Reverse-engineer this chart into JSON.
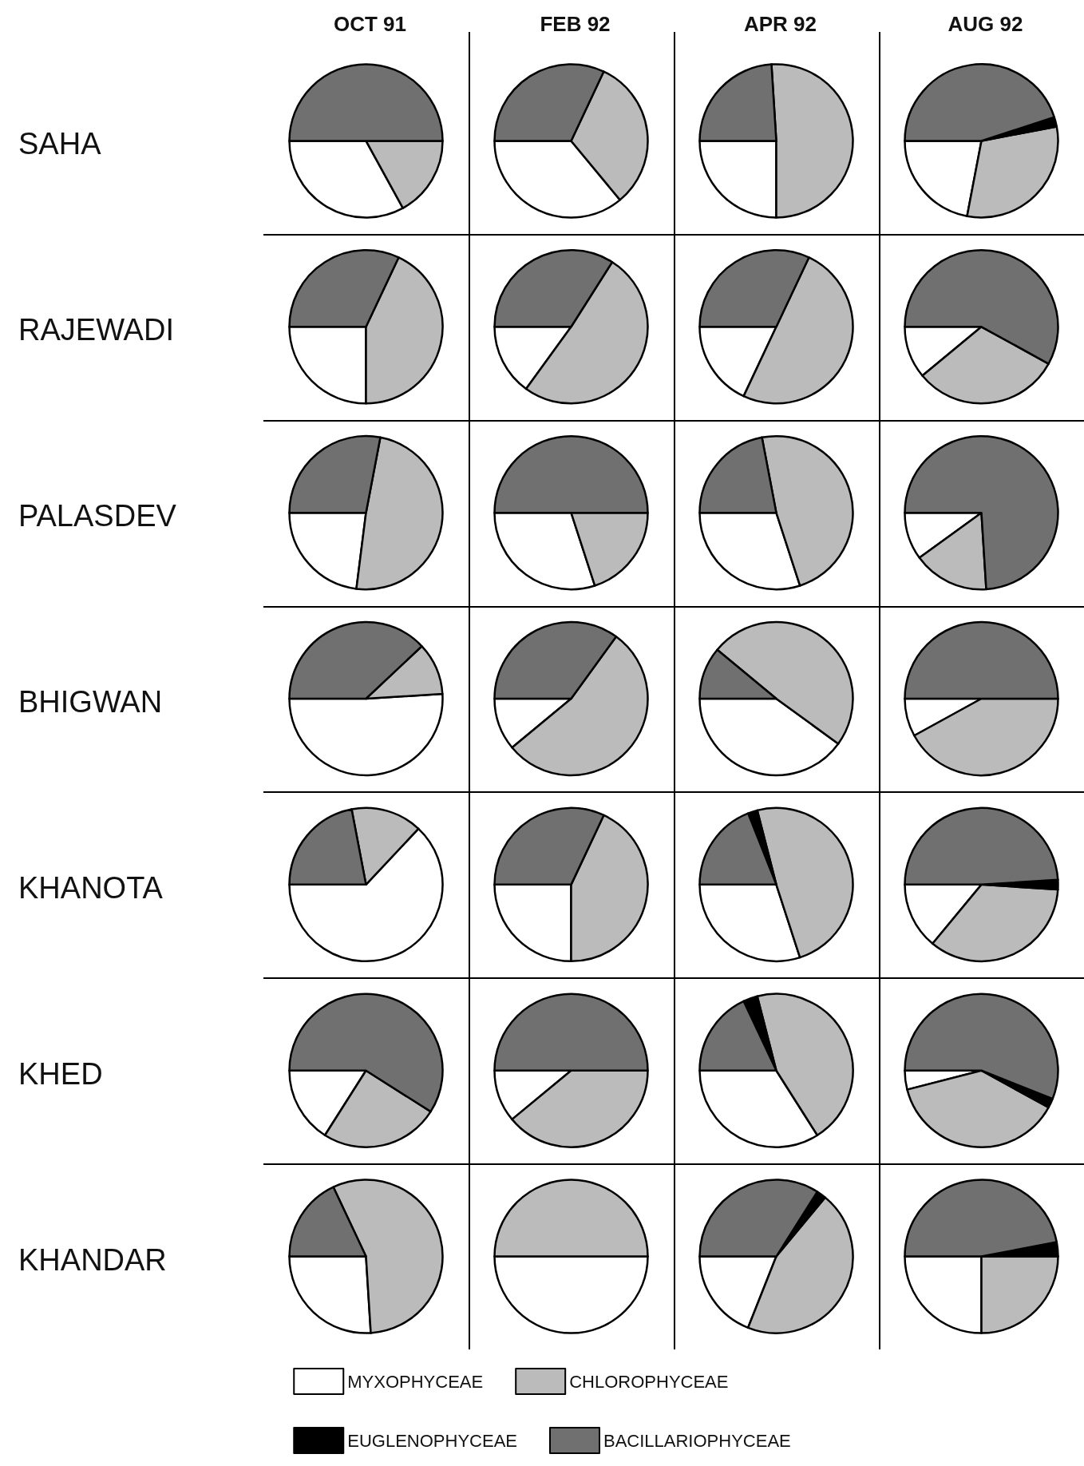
{
  "chart_data": [
    {
      "type": "pie",
      "title": "OCT 91",
      "ylabel": "SAHA",
      "categories": [
        "MYXOPHYCEAE",
        "CHLOROPHYCEAE",
        "EUGLENOPHYCEAE",
        "BACILLARIOPHYCEAE"
      ],
      "values": [
        33,
        17,
        0,
        50
      ],
      "colors": [
        "#ffffff",
        "#bbbbbb",
        "#000000",
        "#707070"
      ],
      "legend": "bottom"
    },
    {
      "type": "pie",
      "title": "FEB 92",
      "categories": [
        null,
        null,
        null,
        null
      ],
      "values": [
        36,
        32,
        0,
        32
      ],
      "colors": [
        "#ffffff",
        "#bbbbbb",
        "#000000",
        "#707070"
      ]
    },
    {
      "type": "pie",
      "title": "APR 92",
      "categories": [
        null,
        null,
        null,
        null
      ],
      "values": [
        25,
        51,
        0,
        24
      ],
      "colors": [
        "#ffffff",
        "#bbbbbb",
        "#000000",
        "#707070"
      ]
    },
    {
      "type": "pie",
      "title": "AUG 92",
      "categories": [
        null,
        null,
        null,
        null
      ],
      "values": [
        22,
        31,
        2,
        45
      ],
      "colors": [
        "#ffffff",
        "#bbbbbb",
        "#000000",
        "#707070"
      ]
    },
    {
      "type": "pie",
      "ylabel": "RAJEWADI",
      "categories": [
        null,
        null,
        null,
        null
      ],
      "values": [
        25,
        43,
        0,
        32
      ],
      "colors": [
        "#ffffff",
        "#bbbbbb",
        "#000000",
        "#707070"
      ]
    },
    {
      "type": "pie",
      "categories": [
        null,
        null,
        null,
        null
      ],
      "values": [
        15,
        51,
        0,
        34
      ],
      "colors": [
        "#ffffff",
        "#bbbbbb",
        "#000000",
        "#707070"
      ]
    },
    {
      "type": "pie",
      "categories": [
        null,
        null,
        null,
        null
      ],
      "values": [
        18,
        50,
        0,
        32
      ],
      "colors": [
        "#ffffff",
        "#bbbbbb",
        "#000000",
        "#707070"
      ]
    },
    {
      "type": "pie",
      "categories": [
        null,
        null,
        null,
        null
      ],
      "values": [
        11,
        31,
        0,
        58
      ],
      "colors": [
        "#ffffff",
        "#bbbbbb",
        "#000000",
        "#707070"
      ]
    },
    {
      "type": "pie",
      "ylabel": "PALASDEV",
      "categories": [
        null,
        null,
        null,
        null
      ],
      "values": [
        23,
        49,
        0,
        28
      ],
      "colors": [
        "#ffffff",
        "#bbbbbb",
        "#000000",
        "#707070"
      ]
    },
    {
      "type": "pie",
      "categories": [
        null,
        null,
        null,
        null
      ],
      "values": [
        30,
        20,
        0,
        50
      ],
      "colors": [
        "#ffffff",
        "#bbbbbb",
        "#000000",
        "#707070"
      ]
    },
    {
      "type": "pie",
      "categories": [
        null,
        null,
        null,
        null
      ],
      "values": [
        30,
        48,
        0,
        22
      ],
      "colors": [
        "#ffffff",
        "#bbbbbb",
        "#000000",
        "#707070"
      ]
    },
    {
      "type": "pie",
      "categories": [
        null,
        null,
        null,
        null
      ],
      "values": [
        10,
        16,
        0,
        74
      ],
      "colors": [
        "#ffffff",
        "#bbbbbb",
        "#000000",
        "#707070"
      ]
    },
    {
      "type": "pie",
      "ylabel": "BHIGWAN",
      "categories": [
        null,
        null,
        null,
        null
      ],
      "values": [
        51,
        11,
        0,
        38
      ],
      "colors": [
        "#ffffff",
        "#bbbbbb",
        "#000000",
        "#707070"
      ]
    },
    {
      "type": "pie",
      "categories": [
        null,
        null,
        null,
        null
      ],
      "values": [
        11,
        54,
        0,
        35
      ],
      "colors": [
        "#ffffff",
        "#bbbbbb",
        "#000000",
        "#707070"
      ]
    },
    {
      "type": "pie",
      "categories": [
        null,
        null,
        null,
        null
      ],
      "values": [
        40,
        49,
        0,
        11
      ],
      "colors": [
        "#ffffff",
        "#bbbbbb",
        "#000000",
        "#707070"
      ]
    },
    {
      "type": "pie",
      "categories": [
        null,
        null,
        null,
        null
      ],
      "values": [
        8,
        42,
        0,
        50
      ],
      "colors": [
        "#ffffff",
        "#bbbbbb",
        "#000000",
        "#707070"
      ]
    },
    {
      "type": "pie",
      "ylabel": "KHANOTA",
      "categories": [
        null,
        null,
        null,
        null
      ],
      "values": [
        63,
        15,
        0,
        22
      ],
      "colors": [
        "#ffffff",
        "#bbbbbb",
        "#000000",
        "#707070"
      ]
    },
    {
      "type": "pie",
      "categories": [
        null,
        null,
        null,
        null
      ],
      "values": [
        25,
        43,
        0,
        32
      ],
      "colors": [
        "#ffffff",
        "#bbbbbb",
        "#000000",
        "#707070"
      ]
    },
    {
      "type": "pie",
      "categories": [
        null,
        null,
        null,
        null
      ],
      "values": [
        30,
        49,
        2,
        19
      ],
      "colors": [
        "#ffffff",
        "#bbbbbb",
        "#000000",
        "#707070"
      ]
    },
    {
      "type": "pie",
      "categories": [
        null,
        null,
        null,
        null
      ],
      "values": [
        14,
        35,
        2,
        49
      ],
      "colors": [
        "#ffffff",
        "#bbbbbb",
        "#000000",
        "#707070"
      ]
    },
    {
      "type": "pie",
      "ylabel": "KHED",
      "categories": [
        null,
        null,
        null,
        null
      ],
      "values": [
        16,
        25,
        0,
        59
      ],
      "colors": [
        "#ffffff",
        "#bbbbbb",
        "#000000",
        "#707070"
      ]
    },
    {
      "type": "pie",
      "categories": [
        null,
        null,
        null,
        null
      ],
      "values": [
        11,
        39,
        0,
        50
      ],
      "colors": [
        "#ffffff",
        "#bbbbbb",
        "#000000",
        "#707070"
      ]
    },
    {
      "type": "pie",
      "categories": [
        null,
        null,
        null,
        null
      ],
      "values": [
        34,
        45,
        3,
        18
      ],
      "colors": [
        "#ffffff",
        "#bbbbbb",
        "#000000",
        "#707070"
      ]
    },
    {
      "type": "pie",
      "categories": [
        null,
        null,
        null,
        null
      ],
      "values": [
        4,
        38,
        2,
        56
      ],
      "colors": [
        "#ffffff",
        "#bbbbbb",
        "#000000",
        "#707070"
      ]
    },
    {
      "type": "pie",
      "ylabel": "KHANDAR",
      "categories": [
        null,
        null,
        null,
        null
      ],
      "values": [
        26,
        56,
        0,
        18
      ],
      "colors": [
        "#ffffff",
        "#bbbbbb",
        "#000000",
        "#707070"
      ]
    },
    {
      "type": "pie",
      "categories": [
        null,
        null,
        null,
        null
      ],
      "values": [
        50,
        50,
        0,
        0
      ],
      "colors": [
        "#ffffff",
        "#bbbbbb",
        "#000000",
        "#707070"
      ]
    },
    {
      "type": "pie",
      "categories": [
        null,
        null,
        null,
        null
      ],
      "values": [
        19,
        45,
        2,
        34
      ],
      "colors": [
        "#ffffff",
        "#bbbbbb",
        "#000000",
        "#707070"
      ]
    },
    {
      "type": "pie",
      "categories": [
        null,
        null,
        null,
        null
      ],
      "values": [
        25,
        25,
        3,
        47
      ],
      "colors": [
        "#ffffff",
        "#bbbbbb",
        "#000000",
        "#707070"
      ]
    }
  ]
}
